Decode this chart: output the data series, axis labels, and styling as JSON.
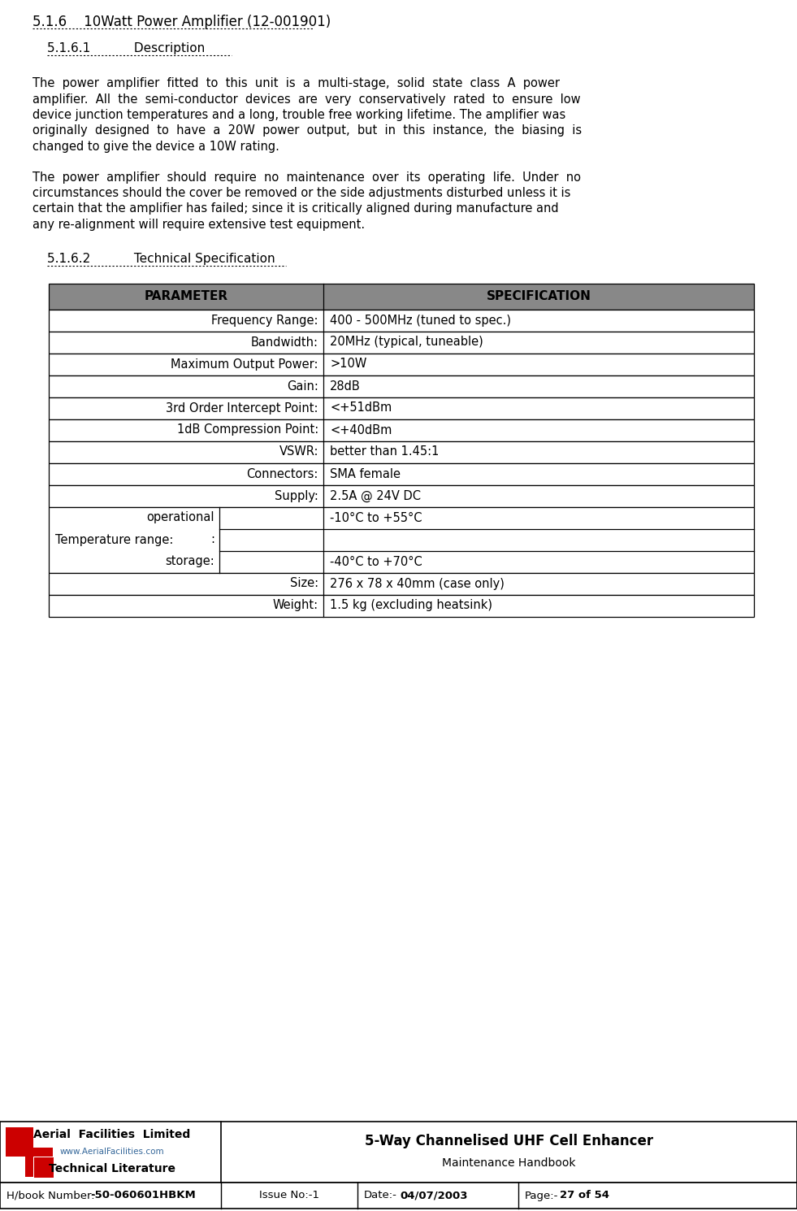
{
  "title1": "5.1.6    10Watt Power Amplifier (12-001901)",
  "subtitle1": "5.1.6.1           Description",
  "para1_lines": [
    "The  power  amplifier  fitted  to  this  unit  is  a  multi-stage,  solid  state  class  A  power",
    "amplifier.  All  the  semi-conductor  devices  are  very  conservatively  rated  to  ensure  low",
    "device junction temperatures and a long, trouble free working lifetime. The amplifier was",
    "originally  designed  to  have  a  20W  power  output,  but  in  this  instance,  the  biasing  is",
    "changed to give the device a 10W rating."
  ],
  "para2_lines": [
    "The  power  amplifier  should  require  no  maintenance  over  its  operating  life.  Under  no",
    "circumstances should the cover be removed or the side adjustments disturbed unless it is",
    "certain that the amplifier has failed; since it is critically aligned during manufacture and",
    "any re-alignment will require extensive test equipment."
  ],
  "subtitle2": "5.1.6.2           Technical Specification",
  "table_header": [
    "PARAMETER",
    "SPECIFICATION"
  ],
  "table_rows": [
    [
      "Frequency Range:",
      "400 - 500MHz (tuned to spec.)"
    ],
    [
      "Bandwidth:",
      "20MHz (typical, tuneable)"
    ],
    [
      "Maximum Output Power:",
      ">10W"
    ],
    [
      "Gain:",
      "28dB"
    ],
    [
      "3rd Order Intercept Point:",
      "<+51dBm"
    ],
    [
      "1dB Compression Point:",
      "<+40dBm"
    ],
    [
      "VSWR:",
      "better than 1.45:1"
    ],
    [
      "Connectors:",
      "SMA female"
    ],
    [
      "Supply:",
      "2.5A @ 24V DC"
    ]
  ],
  "temp_range_label": "Temperature range:",
  "temp_op_label": "operational",
  "temp_colon": ":",
  "temp_stor_label": "storage:",
  "temp_op_val": "-10°C to +55°C",
  "temp_stor_val": "-40°C to +70°C",
  "last_rows": [
    [
      "Size:",
      "276 x 78 x 40mm (case only)"
    ],
    [
      "Weight:",
      "1.5 kg (excluding heatsink)"
    ]
  ],
  "footer_company": "Aerial  Facilities  Limited",
  "footer_website": "www.AerialFacilities.com",
  "footer_lit": "Technical Literature",
  "footer_title": "5-Way Channelised UHF Cell Enhancer",
  "footer_subtitle": "Maintenance Handbook",
  "footer_hbook_label": "H/book Number:",
  "footer_hbook_val": "-50-060601HBKM",
  "footer_issue_label": "Issue No:-",
  "footer_issue_val": "1",
  "footer_date_label": "Date:-",
  "footer_date_val": "04/07/2003",
  "footer_page_label": "Page:-",
  "footer_page_val": "27 of 54",
  "bg_color": "#ffffff",
  "header_bg": "#888888",
  "table_border": "#000000",
  "text_color": "#000000",
  "red_color": "#cc0000",
  "blue_color": "#336699"
}
